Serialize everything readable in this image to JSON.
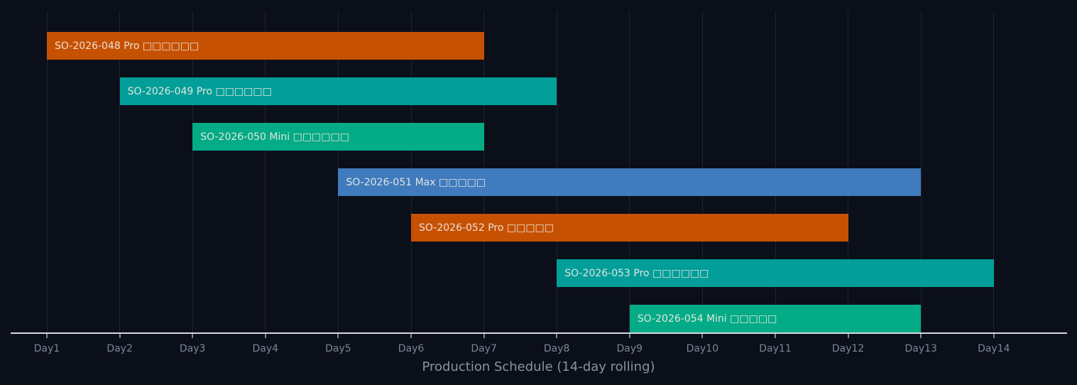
{
  "chart_data": {
    "type": "gantt",
    "title": "",
    "xlabel": "Production Schedule (14-day rolling)",
    "ylabel": "",
    "categories": [
      "Day1",
      "Day2",
      "Day3",
      "Day4",
      "Day5",
      "Day6",
      "Day7",
      "Day8",
      "Day9",
      "Day10",
      "Day11",
      "Day12",
      "Day13",
      "Day14"
    ],
    "grid": true,
    "tasks": [
      {
        "label": "SO-2026-048 Pro □□□□□□",
        "start": 1,
        "end": 7,
        "color": "#c65102"
      },
      {
        "label": "SO-2026-049 Pro □□□□□□",
        "start": 2,
        "end": 8,
        "color": "#029e99"
      },
      {
        "label": "SO-2026-050 Mini □□□□□□",
        "start": 3,
        "end": 7,
        "color": "#03ab86"
      },
      {
        "label": "SO-2026-051 Max □□□□□",
        "start": 5,
        "end": 13,
        "color": "#3f7bbd"
      },
      {
        "label": "SO-2026-052 Pro □□□□□",
        "start": 6,
        "end": 12,
        "color": "#c65102"
      },
      {
        "label": "SO-2026-053 Pro □□□□□□",
        "start": 8,
        "end": 14,
        "color": "#029e99"
      },
      {
        "label": "SO-2026-054 Mini □□□□□",
        "start": 9,
        "end": 13,
        "color": "#03ab86"
      }
    ]
  }
}
